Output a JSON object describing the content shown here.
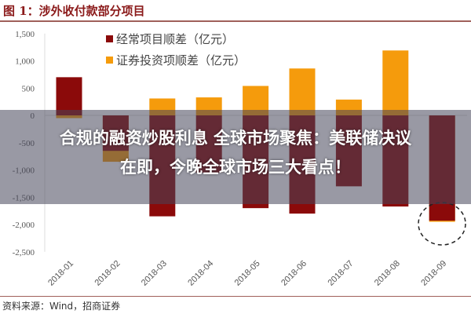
{
  "figure_title": "图 1：涉外收付款部分项目",
  "headline": {
    "line1": "合规的融资炒股利息 全球市场聚焦：美联储决议",
    "line2": "在即，今晚全球市场三大看点！"
  },
  "source": "资料来源：Wind，招商证券",
  "chart_data": {
    "type": "bar",
    "title": "",
    "xlabel": "",
    "ylabel": "",
    "ylim": [
      -2500,
      1500
    ],
    "yticks": [
      1500,
      1000,
      500,
      0,
      -500,
      -1000,
      -1500,
      -2000,
      -2500
    ],
    "ytick_labels": [
      "1,500",
      "1,000",
      "500",
      "0",
      "-500",
      "-1,000",
      "-1,500",
      "-2,000",
      "-2,500"
    ],
    "categories": [
      "2018-01",
      "2018-02",
      "2018-03",
      "2018-04",
      "2018-05",
      "2018-06",
      "2018-07",
      "2018-08",
      "2018-09"
    ],
    "series": [
      {
        "name": "证券投资项顺差（亿元）",
        "color": "#f59b0c",
        "values": [
          -50,
          -850,
          310,
          330,
          540,
          860,
          290,
          1190,
          -1950
        ]
      },
      {
        "name": "经常项目顺差（亿元）",
        "color": "#8b0a0a",
        "values": [
          700,
          -650,
          -1850,
          -1050,
          -1700,
          -1800,
          -1300,
          -1670,
          -1930
        ]
      }
    ],
    "legend_position": "top",
    "grid": false,
    "annotation": "dashed circle around 2018-09"
  }
}
